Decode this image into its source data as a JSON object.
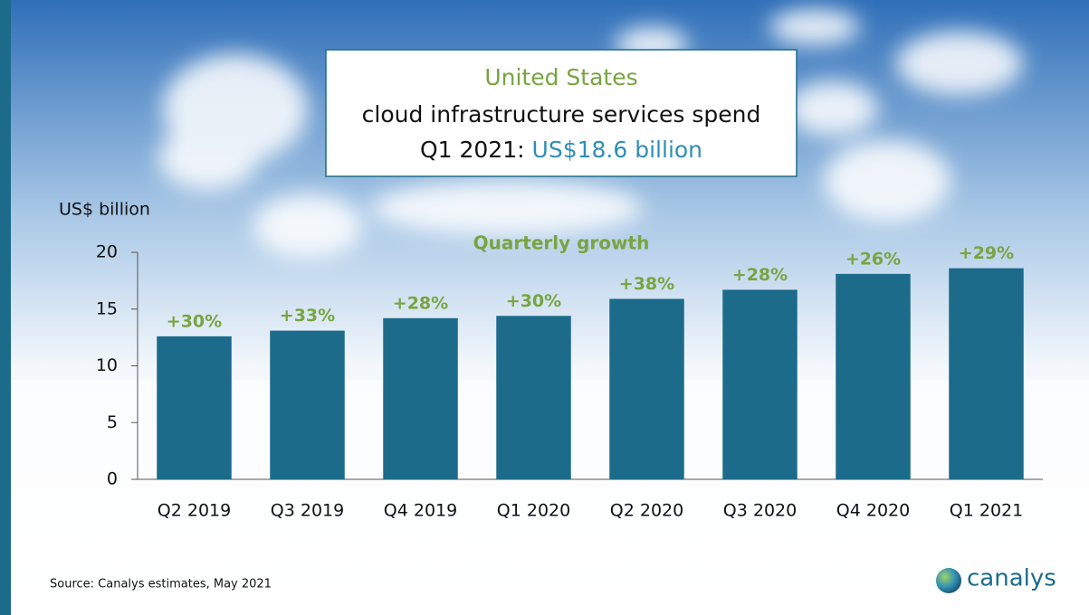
{
  "chart_data": {
    "type": "bar",
    "title": {
      "region": "United States",
      "line2": "cloud infrastructure services spend",
      "line3": "Q1 2021:",
      "highlight": "US$18.6 billion"
    },
    "ylabel": "US$ billion",
    "categories": [
      "Q2 2019",
      "Q3 2019",
      "Q4 2019",
      "Q1 2020",
      "Q2 2020",
      "Q3 2020",
      "Q4 2020",
      "Q1 2021"
    ],
    "values": [
      12.6,
      13.1,
      14.2,
      14.4,
      15.9,
      16.7,
      18.1,
      18.6
    ],
    "color": "#1c6b8b",
    "ylim": [
      0,
      20
    ],
    "yticks": [
      0,
      5,
      10,
      15,
      20
    ],
    "growth": {
      "title": "Quarterly growth",
      "values": [
        30,
        33,
        28,
        30,
        38,
        28,
        26,
        29
      ],
      "value_labels": [
        "+30%",
        "+33%",
        "+28%",
        "+30%",
        "+38%",
        "+28%",
        "+26%",
        "+29%"
      ],
      "color": "#77a540"
    },
    "source": "Source: Canalys estimates, May 2021",
    "logo": "canalys"
  }
}
